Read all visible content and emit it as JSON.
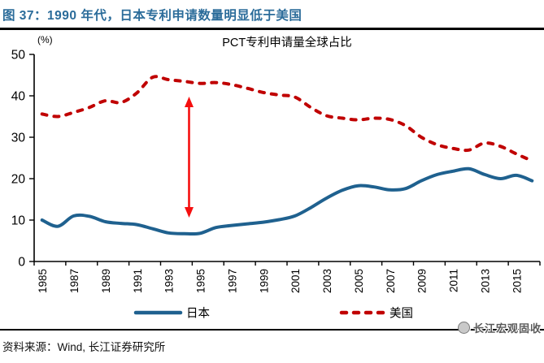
{
  "header": {
    "title": "图 37：1990 年代，日本专利申请数量明显低于美国"
  },
  "chart_data": {
    "type": "line",
    "title": "PCT专利申请量全球占比",
    "unit_label": "(%)",
    "ylim": [
      0,
      50
    ],
    "yticks": [
      0,
      10,
      20,
      30,
      40,
      50
    ],
    "grid": false,
    "legend_position": "bottom",
    "x": [
      1985,
      1986,
      1987,
      1988,
      1989,
      1990,
      1991,
      1992,
      1993,
      1994,
      1995,
      1996,
      1997,
      1998,
      1999,
      2000,
      2001,
      2002,
      2003,
      2004,
      2005,
      2006,
      2007,
      2008,
      2009,
      2010,
      2011,
      2012,
      2013,
      2014,
      2015,
      2016
    ],
    "xtick_labels": [
      "1985",
      "1987",
      "1989",
      "1991",
      "1993",
      "1995",
      "1997",
      "1999",
      "2001",
      "2003",
      "2005",
      "2007",
      "2009",
      "2011",
      "2013",
      "2015"
    ],
    "series": [
      {
        "id": "japan",
        "name": "日本",
        "color": "#1f618f",
        "style": "solid",
        "values": [
          10.0,
          8.5,
          11.0,
          10.9,
          9.6,
          9.2,
          8.9,
          7.9,
          6.9,
          6.7,
          6.8,
          8.2,
          8.7,
          9.1,
          9.5,
          10.1,
          11.0,
          13.0,
          15.3,
          17.2,
          18.3,
          18.0,
          17.3,
          17.6,
          19.5,
          21.0,
          21.8,
          22.4,
          21.0,
          20.0,
          20.8,
          19.5
        ]
      },
      {
        "id": "us",
        "name": "美国",
        "color": "#c00000",
        "style": "dashed",
        "values": [
          35.6,
          35.0,
          36.0,
          37.2,
          38.8,
          38.4,
          40.7,
          44.5,
          43.9,
          43.5,
          43.0,
          43.2,
          42.7,
          41.8,
          40.8,
          40.2,
          39.7,
          37.2,
          35.2,
          34.6,
          34.2,
          34.6,
          34.3,
          32.8,
          30.0,
          28.2,
          27.3,
          26.9,
          28.6,
          27.8,
          26.0,
          24.3
        ]
      }
    ],
    "annotation": {
      "type": "double-arrow",
      "x": 1994.3,
      "y_top": 39.8,
      "y_bottom": 10.6,
      "color": "#f50f0f"
    }
  },
  "footer": {
    "source": "资料来源：Wind, 长江证券研究所"
  },
  "watermark": {
    "text": "长江宏观固收"
  }
}
